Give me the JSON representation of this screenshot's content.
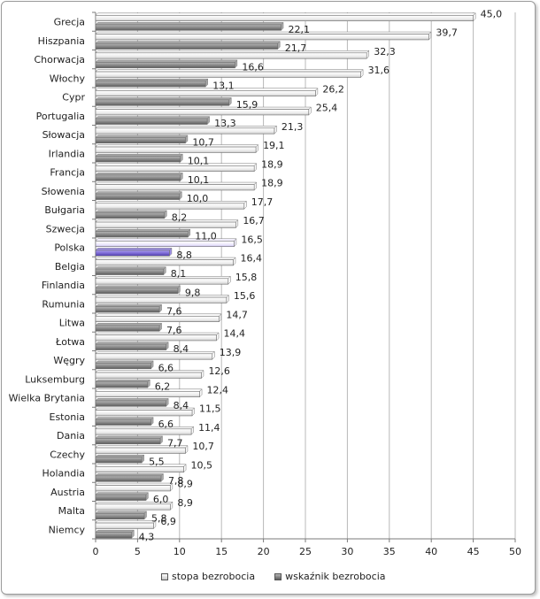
{
  "chart_data": {
    "type": "bar",
    "orientation": "horizontal",
    "categories": [
      "Grecja",
      "Hiszpania",
      "Chorwacja",
      "Włochy",
      "Cypr",
      "Portugalia",
      "Słowacja",
      "Irlandia",
      "Francja",
      "Słowenia",
      "Bułgaria",
      "Szwecja",
      "Polska",
      "Belgia",
      "Finlandia",
      "Rumunia",
      "Litwa",
      "Łotwa",
      "Węgry",
      "Luksemburg",
      "Wielka Brytania",
      "Estonia",
      "Dania",
      "Czechy",
      "Holandia",
      "Austria",
      "Malta",
      "Niemcy"
    ],
    "series": [
      {
        "name": "stopa bezrobocia",
        "values": [
          45.0,
          39.7,
          32.3,
          31.6,
          26.2,
          25.4,
          21.3,
          19.1,
          18.9,
          18.9,
          17.7,
          16.7,
          16.5,
          16.4,
          15.8,
          15.6,
          14.7,
          14.4,
          13.9,
          12.6,
          12.4,
          11.5,
          11.4,
          10.7,
          10.5,
          8.9,
          8.9,
          6.9
        ]
      },
      {
        "name": "wskaźnik bezrobocia",
        "values": [
          22.1,
          21.7,
          16.6,
          13.1,
          15.9,
          13.3,
          10.7,
          10.1,
          10.1,
          10.0,
          8.2,
          11.0,
          8.8,
          8.1,
          9.8,
          7.6,
          7.6,
          8.4,
          6.6,
          6.2,
          8.4,
          6.6,
          7.7,
          5.5,
          7.8,
          6.0,
          5.8,
          4.3
        ]
      }
    ],
    "value_labels": {
      "stopa bezrobocia": [
        "45,0",
        "39,7",
        "32,3",
        "31,6",
        "26,2",
        "25,4",
        "21,3",
        "19,1",
        "18,9",
        "18,9",
        "17,7",
        "16,7",
        "16,5",
        "16,4",
        "15,8",
        "15,6",
        "14,7",
        "14,4",
        "13,9",
        "12,6",
        "12,4",
        "11,5",
        "11,4",
        "10,7",
        "10,5",
        "8,9",
        "8,9",
        "6,9"
      ],
      "wskaźnik bezrobocia": [
        "22,1",
        "21,7",
        "16,6",
        "13,1",
        "15,9",
        "13,3",
        "10,7",
        "10,1",
        "10,1",
        "10,0",
        "8,2",
        "11,0",
        "8,8",
        "8,1",
        "9,8",
        "7,6",
        "7,6",
        "8,4",
        "6,6",
        "6,2",
        "8,4",
        "6,6",
        "7,7",
        "5,5",
        "7,8",
        "6,0",
        "5,8",
        "4,3"
      ]
    },
    "xticks": [
      "0",
      "5",
      "10",
      "15",
      "20",
      "25",
      "30",
      "35",
      "40",
      "45",
      "50"
    ],
    "xlim": [
      0,
      50
    ],
    "grid": "vertical",
    "legend_position": "bottom",
    "highlight_category": "Polska"
  },
  "colors": {
    "series1": "#f4f4f4",
    "series2": "#8a8a8a",
    "highlight1": "#ece8fb",
    "highlight2": "#7e6bd6",
    "grid": "#b8b8b8",
    "axis": "#7a7a7a"
  },
  "legend": {
    "item1": "stopa bezrobocia",
    "item2": "wskaźnik bezrobocia"
  }
}
